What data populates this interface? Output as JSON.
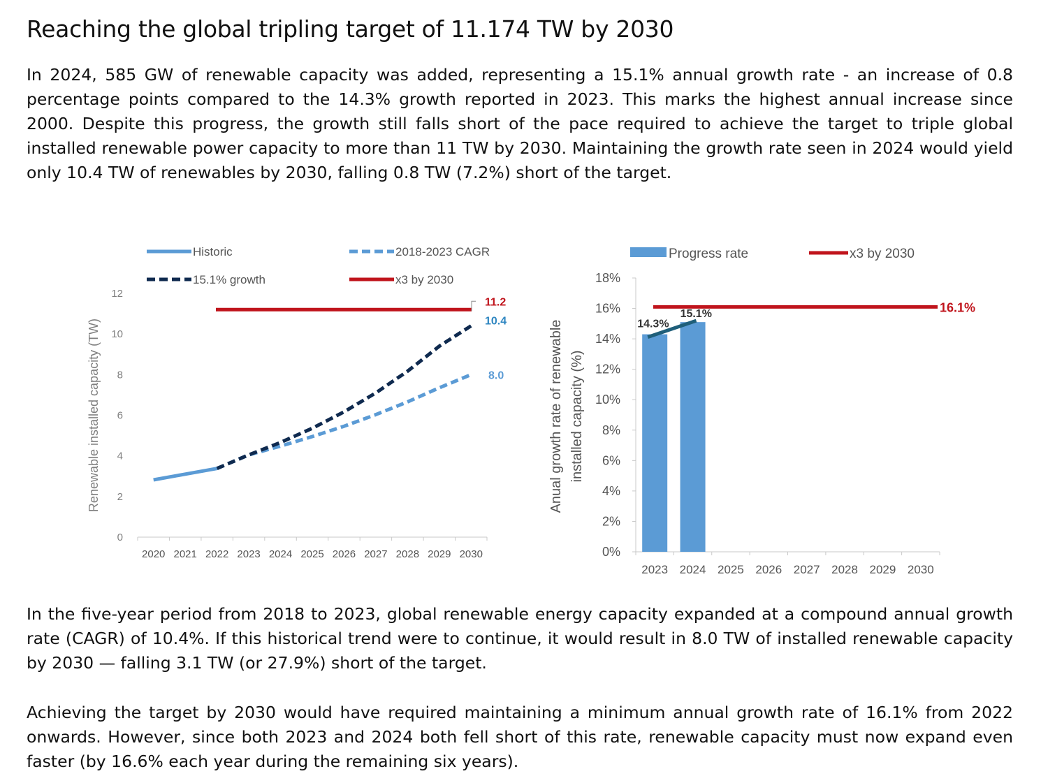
{
  "title": "Reaching the global tripling target of 11.174 TW by 2030",
  "paragraphs": {
    "p1": "In 2024, 585 GW of renewable capacity was added, representing a 15.1% annual growth rate - an increase of 0.8 percentage points compared to the 14.3% growth reported in 2023. This marks the highest annual increase since 2000. Despite this progress, the growth still falls short of the pace required to achieve the target to triple global installed renewable power capacity to more than 11 TW by 2030. Maintaining the growth rate seen in 2024 would yield only 10.4 TW of renewables by 2030, falling 0.8 TW (7.2%) short of the target.",
    "p2": "In the five-year period from 2018 to 2023, global renewable energy capacity expanded at a compound annual growth rate (CAGR) of 10.4%. If this historical trend were to continue, it would result in 8.0 TW of installed renewable capacity by 2030 — falling 3.1 TW (or 27.9%) short of the target.",
    "p3": "Achieving the target by 2030 would have required maintaining a minimum annual growth rate of 16.1% from 2022 onwards. However, since both 2023 and 2024 both fell short of this rate, renewable capacity must now expand even faster (by 16.6% each year during the remaining six years)."
  },
  "chart_data": [
    {
      "type": "line",
      "title": "",
      "xlabel": "",
      "ylabel": "Renewable installed capacity (TW)",
      "categories": [
        "2020",
        "2021",
        "2022",
        "2023",
        "2024",
        "2025",
        "2026",
        "2027",
        "2028",
        "2029",
        "2030"
      ],
      "ylim": [
        0,
        12
      ],
      "yticks": [
        "0",
        "2",
        "4",
        "6",
        "8",
        "10",
        "12"
      ],
      "legend_position": "top",
      "series": [
        {
          "name": "Historic",
          "color": "#5b9bd5",
          "style": "solid",
          "x": [
            2020,
            2021,
            2022
          ],
          "values": [
            2.82,
            3.1,
            3.38
          ]
        },
        {
          "name": "2018-2023 CAGR",
          "color": "#5b9bd5",
          "style": "dashed",
          "x": [
            2022,
            2023,
            2024,
            2025,
            2026,
            2027,
            2028,
            2029,
            2030
          ],
          "values": [
            3.38,
            4.05,
            4.48,
            4.95,
            5.46,
            6.03,
            6.66,
            7.35,
            8.0
          ]
        },
        {
          "name": "15.1% growth",
          "color": "#0f2a4f",
          "style": "dashed",
          "x": [
            2022,
            2023,
            2024,
            2025,
            2026,
            2027,
            2028,
            2029,
            2030
          ],
          "values": [
            3.38,
            4.05,
            4.66,
            5.36,
            6.17,
            7.1,
            8.17,
            9.4,
            10.4
          ]
        },
        {
          "name": "x3 by 2030",
          "color": "#c0141c",
          "style": "solid",
          "x": [
            2022,
            2030
          ],
          "values": [
            11.2,
            11.2
          ]
        }
      ],
      "end_labels": [
        {
          "text": "11.2",
          "color": "#c0141c",
          "value": 11.2
        },
        {
          "text": "10.4",
          "color": "#2e86c1",
          "value": 10.4
        },
        {
          "text": "8.0",
          "color": "#5b9bd5",
          "value": 8.0
        }
      ]
    },
    {
      "type": "bar",
      "title": "",
      "xlabel": "",
      "ylabel_lines": [
        "Anual growth rate of renewable",
        "installed capacity (%)"
      ],
      "categories": [
        "2023",
        "2024",
        "2025",
        "2026",
        "2027",
        "2028",
        "2029",
        "2030"
      ],
      "ylim": [
        0,
        18
      ],
      "yticks": [
        "0%",
        "2%",
        "4%",
        "6%",
        "8%",
        "10%",
        "12%",
        "14%",
        "16%",
        "18%"
      ],
      "legend_position": "top",
      "series": [
        {
          "name": "Progress rate",
          "color": "#5b9bd5",
          "values": [
            14.3,
            15.1,
            null,
            null,
            null,
            null,
            null,
            null
          ],
          "labels": [
            "14.3%",
            "15.1%"
          ]
        },
        {
          "name": "x3 by 2030",
          "color": "#c0141c",
          "values": [
            16.1,
            16.1,
            16.1,
            16.1,
            16.1,
            16.1,
            16.1,
            16.1
          ],
          "label": "16.1%"
        }
      ],
      "trend_color": "#1f5f7a"
    }
  ]
}
